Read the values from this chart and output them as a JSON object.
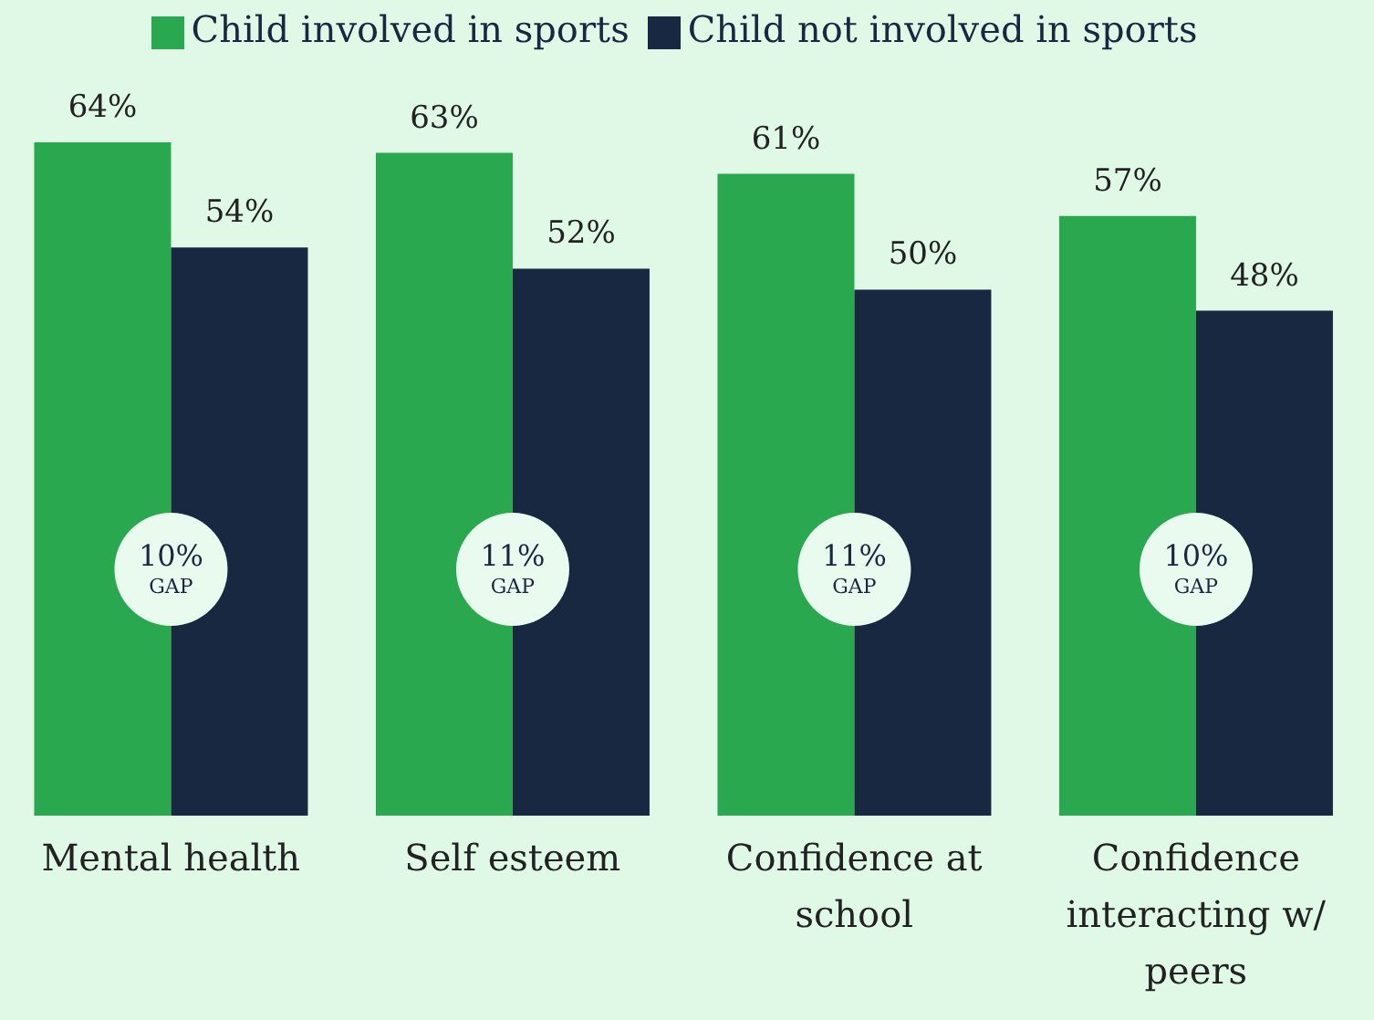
{
  "chart_data": {
    "type": "bar",
    "categories": [
      "Mental health",
      "Self esteem",
      "Confidence at school",
      "Confidence interacting w/ peers"
    ],
    "series": [
      {
        "name": "Child involved in sports",
        "color": "#2aa84f",
        "values": [
          64,
          63,
          61,
          57
        ],
        "value_labels": [
          "64%",
          "63%",
          "61%",
          "57%"
        ]
      },
      {
        "name": "Child not involved in sports",
        "color": "#172840",
        "values": [
          54,
          52,
          50,
          48
        ],
        "value_labels": [
          "54%",
          "52%",
          "50%",
          "48%"
        ]
      }
    ],
    "annotations": [
      "10%\nGAP",
      "11%\nGAP",
      "11%\nGAP",
      "10%\nGAP"
    ],
    "legend": "top"
  }
}
